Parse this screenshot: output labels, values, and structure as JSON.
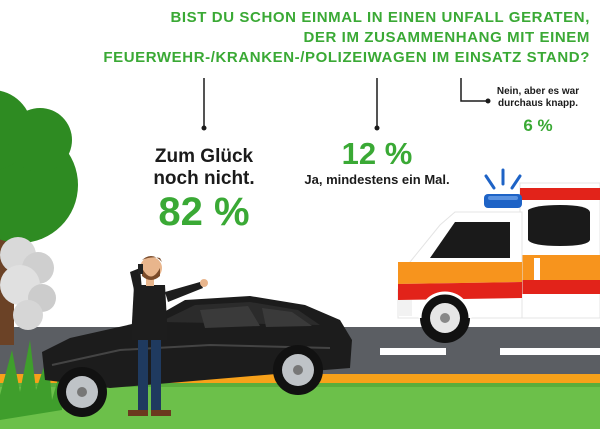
{
  "question": {
    "line1": "BIST DU SCHON EINMAL IN EINEN UNFALL GERATEN,",
    "line2": "DER IM ZUSAMMENHANG MIT EINEM",
    "line3": "FEUERWEHR-/KRANKEN-/POLIZEIWAGEN IM EINSATZ STAND?"
  },
  "answers": {
    "no_luck": {
      "line1": "Zum Glück",
      "line2": "noch nicht.",
      "percent": "82 %"
    },
    "yes": {
      "percent": "12 %",
      "label": "Ja, mindestens ein Mal."
    },
    "almost": {
      "line1": "Nein, aber es war",
      "line2": "durchaus knapp.",
      "percent": "6 %"
    }
  },
  "colors": {
    "accent_green": "#3aa935",
    "text_dark": "#1b1b1b",
    "road": "#5b5e63",
    "grass": "#6cc04a",
    "ambulance_red": "#e2231a",
    "ambulance_orange": "#f7941d",
    "car_black": "#1c1c1c",
    "tree_green": "#2e8b22"
  },
  "icons": [
    "tree-icon",
    "smoke-icon",
    "man-phone-icon",
    "crashed-car-icon",
    "ambulance-icon",
    "siren-icon"
  ]
}
